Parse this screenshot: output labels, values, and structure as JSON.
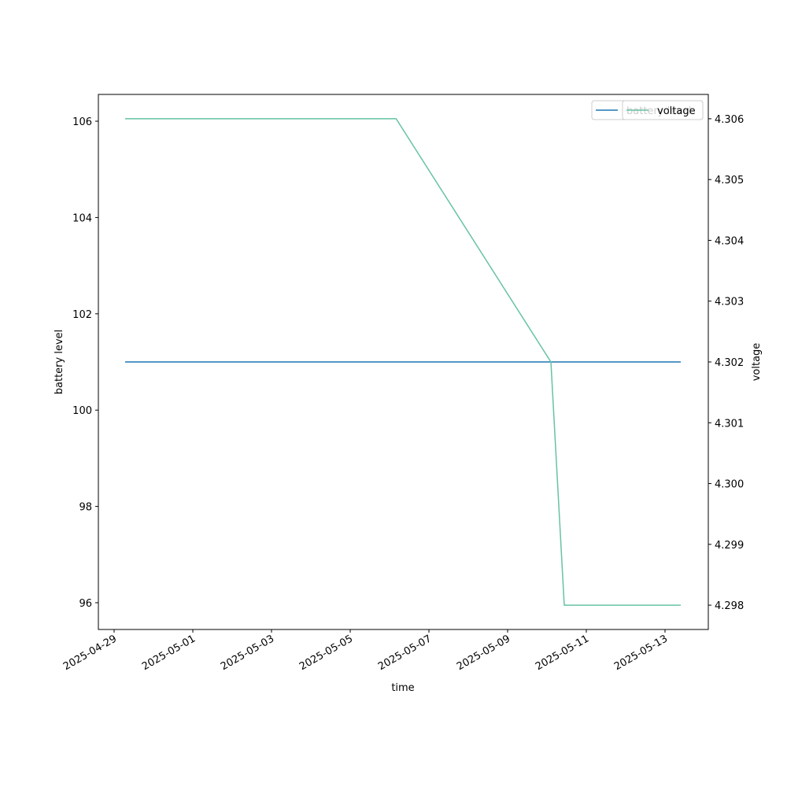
{
  "chart_data": {
    "type": "line",
    "xlabel": "time",
    "ylabel": "battery level",
    "y2label": "voltage",
    "x": [
      "2025-04-29T06:43",
      "2025-05-06T04:00",
      "2025-05-10T02:24",
      "2025-05-10T10:33",
      "2025-05-13T09:36"
    ],
    "series": [
      {
        "name": "battery level",
        "color": "#1f77b4",
        "values": [
          101,
          101,
          101,
          101,
          101
        ]
      },
      {
        "name": "voltage",
        "color": "#66c2a5",
        "axis": "y2",
        "values": [
          4.306,
          4.306,
          4.302,
          4.298,
          4.298
        ]
      }
    ],
    "xlim": [
      "2025-04-28T14:24",
      "2025-05-14T02:24"
    ],
    "xticks": [
      "2025-04-29",
      "2025-05-01",
      "2025-05-03",
      "2025-05-05",
      "2025-05-07",
      "2025-05-09",
      "2025-05-11",
      "2025-05-13"
    ],
    "ylim": [
      95.444,
      106.556
    ],
    "yticks": [
      96,
      98,
      100,
      102,
      104,
      106
    ],
    "y2lim": [
      4.2976,
      4.3064
    ],
    "y2ticks": [
      4.298,
      4.299,
      {
        "value": 4.3,
        "label": "4.300"
      },
      4.301,
      4.302,
      4.303,
      4.304,
      4.305,
      4.306
    ],
    "legend": "upper right"
  }
}
